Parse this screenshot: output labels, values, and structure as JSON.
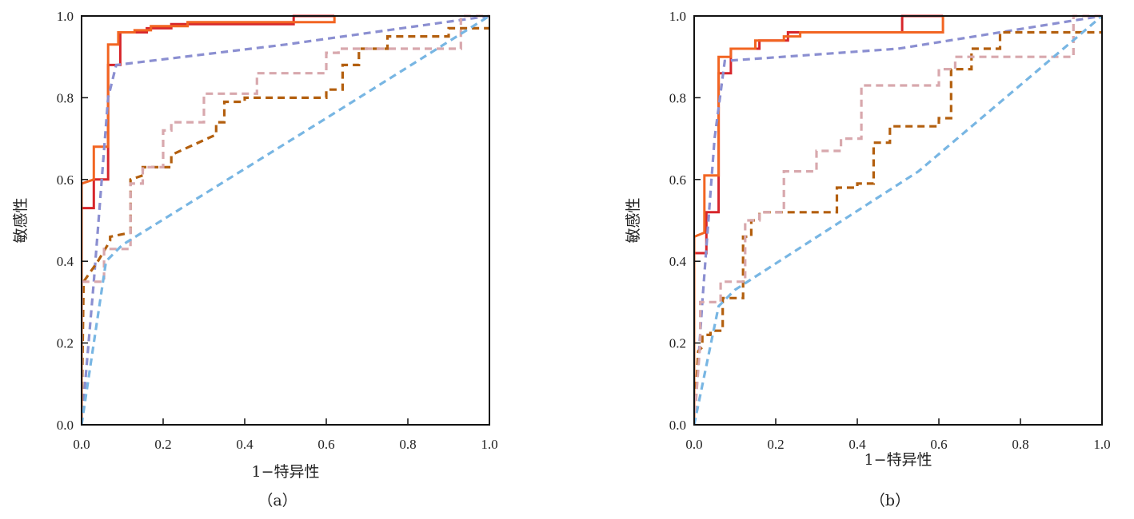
{
  "chart_data": [
    {
      "type": "line",
      "panel_label": "（a）",
      "xlabel": "1−特异性",
      "ylabel": "敏感性",
      "xlim": [
        0,
        1
      ],
      "ylim": [
        0,
        1
      ],
      "xticks": [
        "0.0",
        "0.2",
        "0.4",
        "0.6",
        "0.8",
        "1.0"
      ],
      "yticks": [
        "0.0",
        "0.2",
        "0.4",
        "0.6",
        "0.8",
        "1.0"
      ],
      "grid": false,
      "series": [
        {
          "color": "#d7262b",
          "style": "solid",
          "x": [
            0,
            0,
            0.03,
            0.03,
            0.065,
            0.065,
            0.095,
            0.095,
            0.16,
            0.16,
            0.22,
            0.22,
            0.52,
            0.52,
            0.62,
            0.62
          ],
          "y": [
            0,
            0.53,
            0.53,
            0.6,
            0.6,
            0.88,
            0.88,
            0.96,
            0.96,
            0.97,
            0.97,
            0.98,
            0.98,
            1.0,
            1.0,
            1.0
          ]
        },
        {
          "color": "#f26522",
          "style": "solid",
          "x": [
            0,
            0,
            0.03,
            0.03,
            0.065,
            0.065,
            0.09,
            0.09,
            0.13,
            0.13,
            0.17,
            0.17,
            0.26,
            0.26,
            0.62,
            0.62
          ],
          "y": [
            0,
            0.59,
            0.6,
            0.68,
            0.68,
            0.93,
            0.93,
            0.96,
            0.96,
            0.965,
            0.965,
            0.975,
            0.975,
            0.985,
            0.985,
            1.0
          ]
        },
        {
          "color": "#8b8fd1",
          "style": "dashed",
          "x": [
            0,
            0.03,
            0.065,
            0.085,
            0.5,
            1.0
          ],
          "y": [
            0,
            0.35,
            0.8,
            0.88,
            0.93,
            1.0
          ]
        },
        {
          "color": "#b35f0e",
          "style": "dashed",
          "x": [
            0,
            0.005,
            0.04,
            0.04,
            0.07,
            0.07,
            0.12,
            0.12,
            0.15,
            0.15,
            0.22,
            0.22,
            0.33,
            0.33,
            0.35,
            0.35,
            0.4,
            0.4,
            0.52,
            0.52,
            0.6,
            0.6,
            0.64,
            0.64,
            0.68,
            0.68,
            0.75,
            0.75,
            0.9,
            0.9,
            1.0
          ],
          "y": [
            0,
            0.35,
            0.4,
            0.4,
            0.45,
            0.46,
            0.47,
            0.6,
            0.61,
            0.63,
            0.63,
            0.66,
            0.71,
            0.74,
            0.74,
            0.79,
            0.79,
            0.8,
            0.8,
            0.8,
            0.8,
            0.82,
            0.82,
            0.88,
            0.88,
            0.92,
            0.92,
            0.95,
            0.95,
            0.97,
            0.97
          ]
        },
        {
          "color": "#d8a8ad",
          "style": "dashed",
          "x": [
            0,
            0,
            0.055,
            0.055,
            0.12,
            0.12,
            0.15,
            0.15,
            0.2,
            0.2,
            0.22,
            0.22,
            0.3,
            0.3,
            0.43,
            0.43,
            0.6,
            0.6,
            0.63,
            0.63,
            0.93,
            0.93,
            1.0
          ],
          "y": [
            0,
            0.35,
            0.35,
            0.43,
            0.43,
            0.59,
            0.59,
            0.63,
            0.63,
            0.72,
            0.72,
            0.74,
            0.74,
            0.81,
            0.81,
            0.86,
            0.86,
            0.91,
            0.91,
            0.92,
            0.92,
            1.0,
            1.0
          ]
        },
        {
          "color": "#78b6e3",
          "style": "dashed",
          "x": [
            0,
            0.06,
            0.1,
            0.6,
            1.0
          ],
          "y": [
            0,
            0.4,
            0.44,
            0.75,
            1.0
          ]
        }
      ]
    },
    {
      "type": "line",
      "panel_label": "（b）",
      "xlabel": "1−特异性",
      "ylabel": "敏感性",
      "xlim": [
        0,
        1
      ],
      "ylim": [
        0,
        1
      ],
      "xticks": [
        "0.0",
        "0.2",
        "0.4",
        "0.6",
        "0.8",
        "1.0"
      ],
      "yticks": [
        "0.0",
        "0.2",
        "0.4",
        "0.6",
        "0.8",
        "1.0"
      ],
      "grid": false,
      "series": [
        {
          "color": "#d7262b",
          "style": "solid",
          "x": [
            0,
            0,
            0.03,
            0.03,
            0.06,
            0.06,
            0.09,
            0.09,
            0.16,
            0.16,
            0.23,
            0.23,
            0.51,
            0.51,
            0.61,
            0.61
          ],
          "y": [
            0,
            0.42,
            0.42,
            0.52,
            0.52,
            0.86,
            0.86,
            0.92,
            0.92,
            0.94,
            0.94,
            0.96,
            0.96,
            1.0,
            1.0,
            1.0
          ]
        },
        {
          "color": "#f26522",
          "style": "solid",
          "x": [
            0,
            0,
            0.025,
            0.025,
            0.06,
            0.06,
            0.09,
            0.09,
            0.15,
            0.15,
            0.22,
            0.22,
            0.26,
            0.26,
            0.61,
            0.61
          ],
          "y": [
            0,
            0.46,
            0.47,
            0.61,
            0.61,
            0.9,
            0.9,
            0.92,
            0.92,
            0.94,
            0.94,
            0.95,
            0.95,
            0.96,
            0.96,
            1.0
          ]
        },
        {
          "color": "#8b8fd1",
          "style": "dashed",
          "x": [
            0,
            0.02,
            0.05,
            0.075,
            0.5,
            1.0
          ],
          "y": [
            0,
            0.3,
            0.7,
            0.89,
            0.92,
            1.0
          ]
        },
        {
          "color": "#b35f0e",
          "style": "dashed",
          "x": [
            0,
            0.01,
            0.02,
            0.02,
            0.04,
            0.04,
            0.07,
            0.07,
            0.12,
            0.12,
            0.14,
            0.14,
            0.16,
            0.16,
            0.2,
            0.2,
            0.35,
            0.35,
            0.4,
            0.4,
            0.44,
            0.44,
            0.48,
            0.48,
            0.6,
            0.6,
            0.63,
            0.63,
            0.68,
            0.68,
            0.75,
            0.75,
            1.0
          ],
          "y": [
            0,
            0.18,
            0.19,
            0.22,
            0.22,
            0.23,
            0.23,
            0.31,
            0.31,
            0.46,
            0.46,
            0.5,
            0.5,
            0.52,
            0.52,
            0.52,
            0.52,
            0.58,
            0.58,
            0.59,
            0.59,
            0.69,
            0.69,
            0.73,
            0.73,
            0.75,
            0.75,
            0.87,
            0.87,
            0.92,
            0.92,
            0.96,
            0.96
          ]
        },
        {
          "color": "#d8a8ad",
          "style": "dashed",
          "x": [
            0,
            0.015,
            0.015,
            0.065,
            0.065,
            0.125,
            0.125,
            0.16,
            0.16,
            0.22,
            0.22,
            0.3,
            0.3,
            0.36,
            0.36,
            0.41,
            0.41,
            0.6,
            0.6,
            0.64,
            0.64,
            0.93,
            0.93,
            1.0
          ],
          "y": [
            0,
            0.2,
            0.3,
            0.3,
            0.35,
            0.35,
            0.5,
            0.5,
            0.52,
            0.52,
            0.62,
            0.62,
            0.67,
            0.67,
            0.7,
            0.7,
            0.83,
            0.83,
            0.87,
            0.87,
            0.9,
            0.9,
            1.0,
            1.0
          ]
        },
        {
          "color": "#78b6e3",
          "style": "dashed",
          "x": [
            0,
            0.06,
            0.1,
            0.55,
            1.0
          ],
          "y": [
            0,
            0.29,
            0.33,
            0.62,
            1.0
          ]
        }
      ]
    }
  ]
}
